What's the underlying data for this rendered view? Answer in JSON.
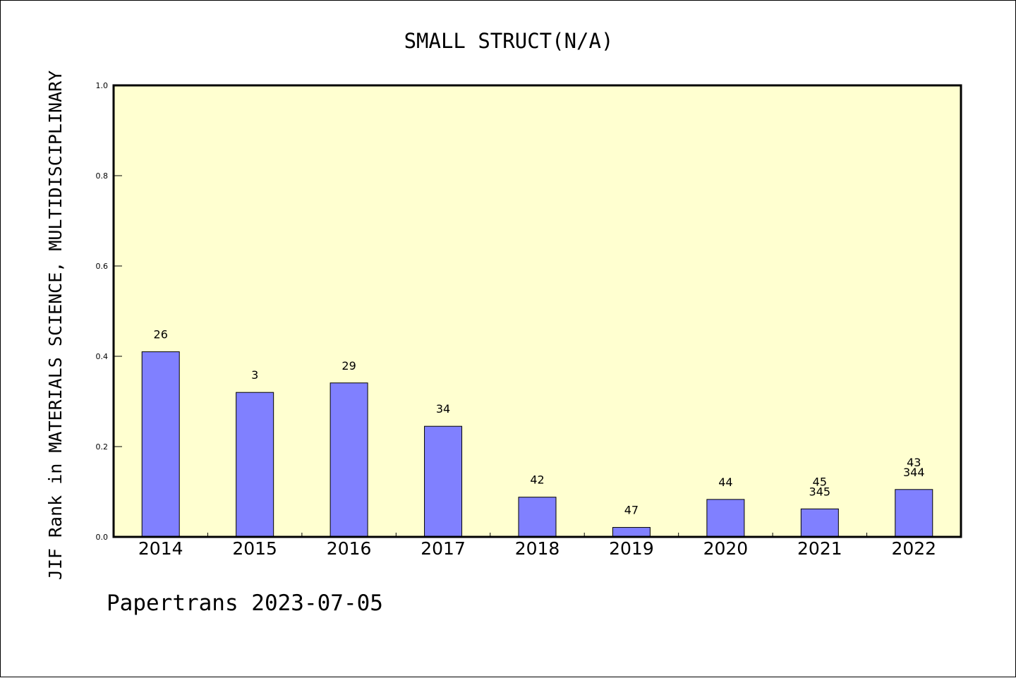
{
  "chart_data": {
    "type": "bar",
    "title": "SMALL STRUCT(N/A)",
    "xlabel": "",
    "ylabel": "JIF Rank in MATERIALS SCIENCE, MULTIDISCIPLINARY",
    "ylim": [
      0,
      1.0
    ],
    "yticks": [
      "0.0",
      "0.2",
      "0.4",
      "0.6",
      "0.8",
      "1.0"
    ],
    "categories": [
      "2014",
      "2015",
      "2016",
      "2017",
      "2018",
      "2019",
      "2020",
      "2021",
      "2022"
    ],
    "values": [
      0.41,
      0.32,
      0.341,
      0.245,
      0.088,
      0.021,
      0.083,
      0.062,
      0.105
    ],
    "data_labels": [
      [
        "26"
      ],
      [
        "3"
      ],
      [
        "29"
      ],
      [
        "34"
      ],
      [
        "42"
      ],
      [
        "47"
      ],
      [
        "44"
      ],
      [
        "45",
        "345"
      ],
      [
        "43",
        "344"
      ]
    ],
    "grid": false,
    "legend": "none",
    "colors": {
      "plot_background": "#ffffd0",
      "bar_fill": "#8080ff",
      "bar_stroke": "#000000",
      "axis": "#000000"
    }
  },
  "footer": {
    "text": "Papertrans 2023-07-05"
  }
}
